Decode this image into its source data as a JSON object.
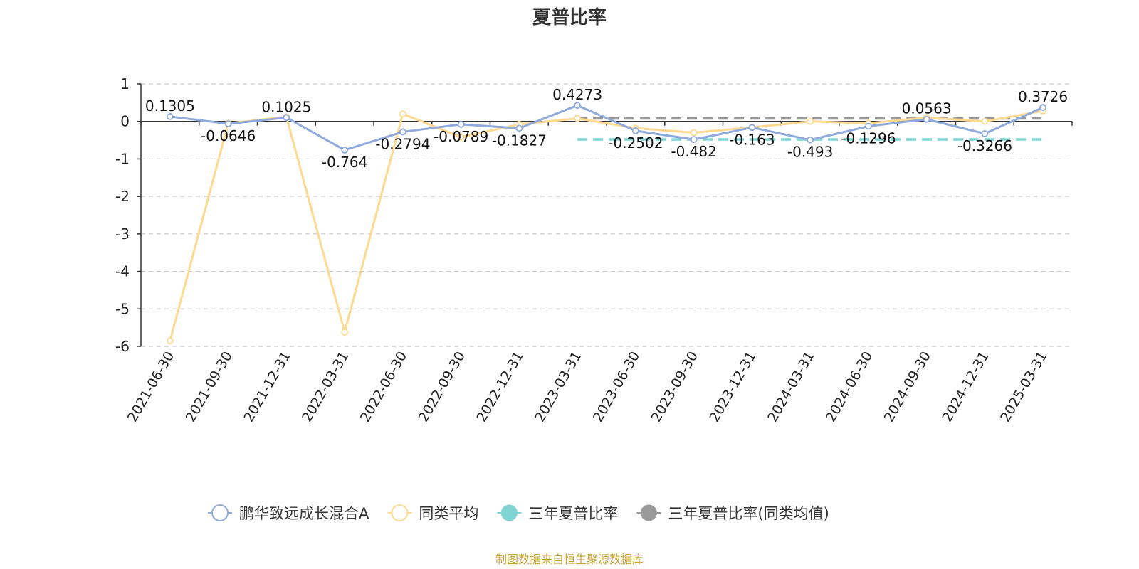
{
  "chart_data": {
    "type": "line",
    "title": "夏普比率",
    "source_note": "制图数据来自恒生聚源数据库",
    "categories": [
      "2021-06-30",
      "2021-09-30",
      "2021-12-31",
      "2022-03-31",
      "2022-06-30",
      "2022-09-30",
      "2022-12-31",
      "2023-03-31",
      "2023-06-30",
      "2023-09-30",
      "2023-12-31",
      "2024-03-31",
      "2024-06-30",
      "2024-09-30",
      "2024-12-31",
      "2025-03-31"
    ],
    "ylim": [
      -6,
      1
    ],
    "yticks": [
      "1",
      "0",
      "-1",
      "-2",
      "-3",
      "-4",
      "-5",
      "-6"
    ],
    "grid": true,
    "legend_position": "bottom-center",
    "series": [
      {
        "name": "鹏华致远成长混合A",
        "color": "#8faadc",
        "values": [
          0.1305,
          -0.0646,
          0.1025,
          -0.764,
          -0.2794,
          -0.0789,
          -0.1827,
          0.4273,
          -0.2502,
          -0.482,
          -0.163,
          -0.493,
          -0.1296,
          0.0563,
          -0.3266,
          0.3726
        ],
        "labels": [
          "0.1305",
          "-0.0646",
          "0.1025",
          "-0.764",
          "-0.2794",
          "-0.0789",
          "-0.1827",
          "0.4273",
          "-0.2502",
          "-0.482",
          "-0.163",
          "-0.493",
          "-0.1296",
          "0.0563",
          "-0.3266",
          "0.3726"
        ]
      },
      {
        "name": "同类平均",
        "color": "#ffd98f",
        "values": [
          -5.85,
          -0.05,
          0.12,
          -5.62,
          0.2,
          -0.42,
          -0.08,
          0.08,
          -0.18,
          -0.3,
          -0.16,
          0.0,
          -0.05,
          0.1,
          0.0,
          0.28
        ]
      },
      {
        "name": "三年夏普比率",
        "color": "#7fd3d3",
        "type": "reference",
        "value": -0.48,
        "from": "2023-03-31",
        "to": "2025-03-31"
      },
      {
        "name": "三年夏普比率(同类均值)",
        "color": "#999999",
        "type": "reference",
        "value": 0.08,
        "from": "2023-03-31",
        "to": "2025-03-31"
      }
    ]
  }
}
